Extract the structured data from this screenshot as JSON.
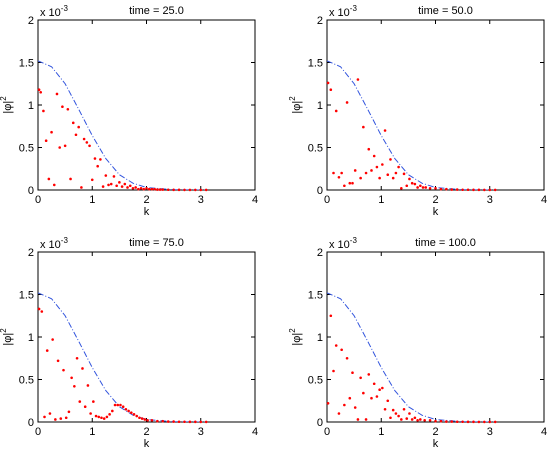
{
  "chart_data": [
    {
      "type": "scatter",
      "title": "time = 25.0",
      "xlabel": "k",
      "ylabel_base": "|φ|",
      "ylabel_exp": "2",
      "scale_base": "x 10",
      "scale_exp": "-3",
      "xlim": [
        0,
        4
      ],
      "ylim": [
        0,
        2
      ],
      "xticks": [
        "0",
        "1",
        "2",
        "3",
        "4"
      ],
      "yticks": [
        "0",
        "0.5",
        "1",
        "1.5",
        "2"
      ],
      "grid": false,
      "series": [
        {
          "style": "dash-dot-blue",
          "x": [
            0,
            0.25,
            0.5,
            0.75,
            1,
            1.25,
            1.5,
            1.75,
            2,
            2.5,
            3.1
          ],
          "y": [
            1.52,
            1.45,
            1.25,
            0.95,
            0.64,
            0.37,
            0.18,
            0.08,
            0.03,
            0.003,
            0
          ]
        },
        {
          "style": "red-dots",
          "x": [
            0.02,
            0.05,
            0.1,
            0.15,
            0.2,
            0.25,
            0.3,
            0.35,
            0.4,
            0.45,
            0.5,
            0.55,
            0.6,
            0.65,
            0.7,
            0.75,
            0.8,
            0.85,
            0.9,
            0.95,
            1.0,
            1.05,
            1.1,
            1.15,
            1.2,
            1.25,
            1.3,
            1.35,
            1.4,
            1.45,
            1.5,
            1.55,
            1.6,
            1.65,
            1.7,
            1.75,
            1.8,
            1.85,
            1.9,
            1.95,
            2.0,
            2.05,
            2.1,
            2.15,
            2.2,
            2.25,
            2.3,
            2.4,
            2.5,
            2.6,
            2.7,
            2.8,
            2.9,
            3.0,
            3.1
          ],
          "y": [
            1.18,
            1.15,
            0.93,
            0.58,
            0.13,
            0.68,
            0.06,
            1.13,
            0.5,
            0.98,
            0.52,
            0.95,
            0.13,
            0.79,
            0.65,
            0.74,
            0.03,
            0.6,
            0.56,
            0.52,
            0.12,
            0.37,
            0.28,
            0.36,
            0.04,
            0.17,
            0.06,
            0.07,
            0.16,
            0.05,
            0.09,
            0.04,
            0.07,
            0.03,
            0.05,
            0.02,
            0.03,
            0.01,
            0.02,
            0.01,
            0.02,
            0.01,
            0.01,
            0.01,
            0.005,
            0.005,
            0.005,
            0.003,
            0.002,
            0.002,
            0.001,
            0.001,
            0.001,
            0.001,
            0.001
          ]
        }
      ]
    },
    {
      "type": "scatter",
      "title": "time = 50.0",
      "xlabel": "k",
      "ylabel_base": "|φ|",
      "ylabel_exp": "2",
      "scale_base": "x 10",
      "scale_exp": "-3",
      "xlim": [
        0,
        4
      ],
      "ylim": [
        0,
        2
      ],
      "xticks": [
        "0",
        "1",
        "2",
        "3",
        "4"
      ],
      "yticks": [
        "0",
        "0.5",
        "1",
        "1.5",
        "2"
      ],
      "grid": false,
      "series": [
        {
          "style": "dash-dot-blue",
          "x": [
            0,
            0.25,
            0.5,
            0.75,
            1,
            1.25,
            1.5,
            1.75,
            2,
            2.5,
            3.1
          ],
          "y": [
            1.52,
            1.45,
            1.25,
            0.95,
            0.64,
            0.37,
            0.18,
            0.08,
            0.03,
            0.003,
            0
          ]
        },
        {
          "style": "red-dots",
          "x": [
            0.02,
            0.07,
            0.12,
            0.17,
            0.22,
            0.27,
            0.32,
            0.37,
            0.42,
            0.47,
            0.52,
            0.57,
            0.62,
            0.67,
            0.72,
            0.77,
            0.82,
            0.87,
            0.92,
            0.97,
            1.02,
            1.07,
            1.12,
            1.17,
            1.22,
            1.27,
            1.32,
            1.37,
            1.42,
            1.47,
            1.52,
            1.57,
            1.62,
            1.67,
            1.72,
            1.77,
            1.82,
            1.9,
            2.0,
            2.1,
            2.2,
            2.3,
            2.4,
            2.5,
            2.6,
            2.7,
            2.8,
            2.9,
            3.0,
            3.1
          ],
          "y": [
            1.26,
            1.18,
            0.2,
            0.93,
            0.15,
            0.2,
            0.05,
            1.03,
            0.08,
            0.08,
            0.23,
            1.3,
            0.14,
            0.74,
            0.2,
            0.48,
            0.23,
            0.4,
            0.27,
            0.14,
            0.3,
            0.7,
            0.18,
            0.36,
            0.14,
            0.2,
            0.27,
            0.02,
            0.19,
            0.05,
            0.13,
            0.08,
            0.07,
            0.03,
            0.05,
            0.03,
            0.03,
            0.02,
            0.02,
            0.01,
            0.01,
            0.005,
            0.005,
            0.003,
            0.003,
            0.002,
            0.002,
            0.001,
            0.001,
            0.001
          ]
        }
      ]
    },
    {
      "type": "scatter",
      "title": "time = 75.0",
      "xlabel": "k",
      "ylabel_base": "|φ|",
      "ylabel_exp": "2",
      "scale_base": "x 10",
      "scale_exp": "-3",
      "xlim": [
        0,
        4
      ],
      "ylim": [
        0,
        2
      ],
      "xticks": [
        "0",
        "1",
        "2",
        "3",
        "4"
      ],
      "yticks": [
        "0",
        "0.5",
        "1",
        "1.5",
        "2"
      ],
      "grid": false,
      "series": [
        {
          "style": "dash-dot-blue",
          "x": [
            0,
            0.25,
            0.5,
            0.75,
            1,
            1.25,
            1.5,
            1.75,
            2,
            2.5,
            3.1
          ],
          "y": [
            1.52,
            1.45,
            1.25,
            0.95,
            0.64,
            0.37,
            0.18,
            0.08,
            0.03,
            0.003,
            0
          ]
        },
        {
          "style": "red-dots",
          "x": [
            0.02,
            0.07,
            0.12,
            0.17,
            0.22,
            0.27,
            0.32,
            0.37,
            0.42,
            0.47,
            0.52,
            0.57,
            0.62,
            0.67,
            0.72,
            0.77,
            0.82,
            0.87,
            0.92,
            0.97,
            1.02,
            1.07,
            1.12,
            1.17,
            1.22,
            1.27,
            1.32,
            1.37,
            1.42,
            1.47,
            1.52,
            1.57,
            1.62,
            1.67,
            1.72,
            1.77,
            1.82,
            1.87,
            1.92,
            1.97,
            2.02,
            2.1,
            2.2,
            2.3,
            2.4,
            2.5,
            2.6,
            2.7,
            2.8,
            2.9,
            3.0,
            3.1
          ],
          "y": [
            1.33,
            1.3,
            0.06,
            0.84,
            0.1,
            0.97,
            0.03,
            0.72,
            0.04,
            0.61,
            0.05,
            0.12,
            0.52,
            0.42,
            0.75,
            0.24,
            0.63,
            0.18,
            0.43,
            0.1,
            0.24,
            0.07,
            0.06,
            0.05,
            0.04,
            0.06,
            0.09,
            0.13,
            0.2,
            0.2,
            0.2,
            0.18,
            0.15,
            0.13,
            0.11,
            0.09,
            0.07,
            0.05,
            0.04,
            0.03,
            0.02,
            0.02,
            0.01,
            0.01,
            0.005,
            0.005,
            0.003,
            0.003,
            0.002,
            0.002,
            0.001,
            0.001
          ]
        }
      ]
    },
    {
      "type": "scatter",
      "title": "time = 100.0",
      "xlabel": "k",
      "ylabel_base": "|φ|",
      "ylabel_exp": "2",
      "scale_base": "x 10",
      "scale_exp": "-3",
      "xlim": [
        0,
        4
      ],
      "ylim": [
        0,
        2
      ],
      "xticks": [
        "0",
        "1",
        "2",
        "3",
        "4"
      ],
      "yticks": [
        "0",
        "0.5",
        "1",
        "1.5",
        "2"
      ],
      "grid": false,
      "series": [
        {
          "style": "dash-dot-blue",
          "x": [
            0,
            0.25,
            0.5,
            0.75,
            1,
            1.25,
            1.5,
            1.75,
            2,
            2.5,
            3.1
          ],
          "y": [
            1.52,
            1.45,
            1.25,
            0.95,
            0.64,
            0.37,
            0.18,
            0.08,
            0.03,
            0.003,
            0
          ]
        },
        {
          "style": "red-dots",
          "x": [
            0.02,
            0.07,
            0.12,
            0.17,
            0.22,
            0.27,
            0.32,
            0.37,
            0.42,
            0.47,
            0.52,
            0.57,
            0.62,
            0.67,
            0.72,
            0.77,
            0.82,
            0.87,
            0.92,
            0.97,
            1.02,
            1.07,
            1.12,
            1.17,
            1.22,
            1.27,
            1.32,
            1.37,
            1.42,
            1.47,
            1.52,
            1.57,
            1.62,
            1.67,
            1.72,
            1.8,
            1.9,
            2.0,
            2.1,
            2.2,
            2.3,
            2.4,
            2.5,
            2.6,
            2.7,
            2.8,
            2.9,
            3.0,
            3.1
          ],
          "y": [
            0.22,
            1.25,
            0.6,
            0.9,
            0.1,
            0.85,
            0.2,
            0.75,
            0.28,
            0.58,
            0.17,
            0.03,
            0.52,
            0.34,
            0.03,
            0.56,
            0.28,
            0.45,
            0.3,
            0.38,
            0.4,
            0.15,
            0.25,
            0.05,
            0.14,
            0.1,
            0.07,
            0.03,
            0.15,
            0.04,
            0.1,
            0.03,
            0.05,
            0.02,
            0.03,
            0.02,
            0.02,
            0.01,
            0.01,
            0.005,
            0.005,
            0.003,
            0.003,
            0.002,
            0.002,
            0.001,
            0.001,
            0.001,
            0.001
          ]
        }
      ]
    }
  ],
  "colors": {
    "line": "#3355dd",
    "dots": "#ff0000",
    "axis": "#000000"
  }
}
